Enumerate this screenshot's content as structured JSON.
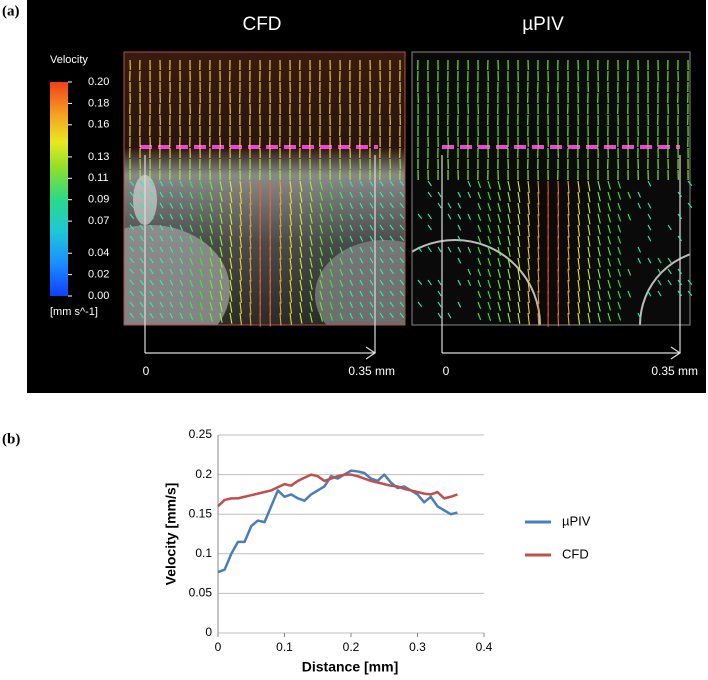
{
  "panel_labels": [
    "(a)",
    "(b)"
  ],
  "panel_a": {
    "titles": [
      "CFD",
      "µPIV"
    ],
    "scale_labels": [
      "0",
      "0.35 mm",
      "0",
      "0.35 mm"
    ],
    "colorbar": {
      "title": "Velocity",
      "unit": "[mm s^-1]",
      "ticks": [
        {
          "value": 0.2,
          "label": "0.20"
        },
        {
          "value": 0.18,
          "label": "0.18"
        },
        {
          "value": 0.16,
          "label": "0.16"
        },
        {
          "value": 0.13,
          "label": "0.13"
        },
        {
          "value": 0.11,
          "label": "0.11"
        },
        {
          "value": 0.09,
          "label": "0.09"
        },
        {
          "value": 0.07,
          "label": "0.07"
        },
        {
          "value": 0.04,
          "label": "0.04"
        },
        {
          "value": 0.02,
          "label": "0.02"
        },
        {
          "value": 0,
          "label": "0.00"
        }
      ]
    }
  },
  "chart_data": {
    "type": "line",
    "x_label": "Distance [mm]",
    "y_label": "Velocity [mm/s]",
    "x": [
      0,
      0.01,
      0.02,
      0.03,
      0.04,
      0.05,
      0.06,
      0.07,
      0.08,
      0.09,
      0.1,
      0.11,
      0.12,
      0.13,
      0.14,
      0.15,
      0.16,
      0.17,
      0.18,
      0.19,
      0.2,
      0.21,
      0.22,
      0.23,
      0.24,
      0.25,
      0.26,
      0.27,
      0.28,
      0.29,
      0.3,
      0.31,
      0.32,
      0.33,
      0.34,
      0.35,
      0.36
    ],
    "series": [
      {
        "name": "µPIV",
        "color": "#4a7ebb",
        "values": [
          0.077,
          0.08,
          0.1,
          0.115,
          0.115,
          0.135,
          0.142,
          0.14,
          0.16,
          0.18,
          0.172,
          0.175,
          0.17,
          0.167,
          0.175,
          0.18,
          0.185,
          0.198,
          0.195,
          0.2,
          0.205,
          0.204,
          0.202,
          0.195,
          0.192,
          0.2,
          0.19,
          0.183,
          0.185,
          0.18,
          0.175,
          0.165,
          0.172,
          0.16,
          0.155,
          0.15,
          0.152
        ]
      },
      {
        "name": "CFD",
        "color": "#c0504d",
        "values": [
          0.16,
          0.168,
          0.17,
          0.17,
          0.172,
          0.174,
          0.176,
          0.178,
          0.18,
          0.184,
          0.188,
          0.186,
          0.192,
          0.196,
          0.2,
          0.198,
          0.192,
          0.195,
          0.198,
          0.2,
          0.2,
          0.198,
          0.195,
          0.192,
          0.19,
          0.188,
          0.186,
          0.185,
          0.182,
          0.18,
          0.178,
          0.176,
          0.175,
          0.178,
          0.17,
          0.172,
          0.175
        ]
      }
    ],
    "xlim": [
      0,
      0.4
    ],
    "xticks": [
      0,
      0.1,
      0.2,
      0.3,
      0.4
    ],
    "ylim": [
      0,
      0.25
    ],
    "yticks": [
      0,
      0.05,
      0.1,
      0.15,
      0.2,
      0.25
    ],
    "grid": true,
    "legend": "right"
  }
}
